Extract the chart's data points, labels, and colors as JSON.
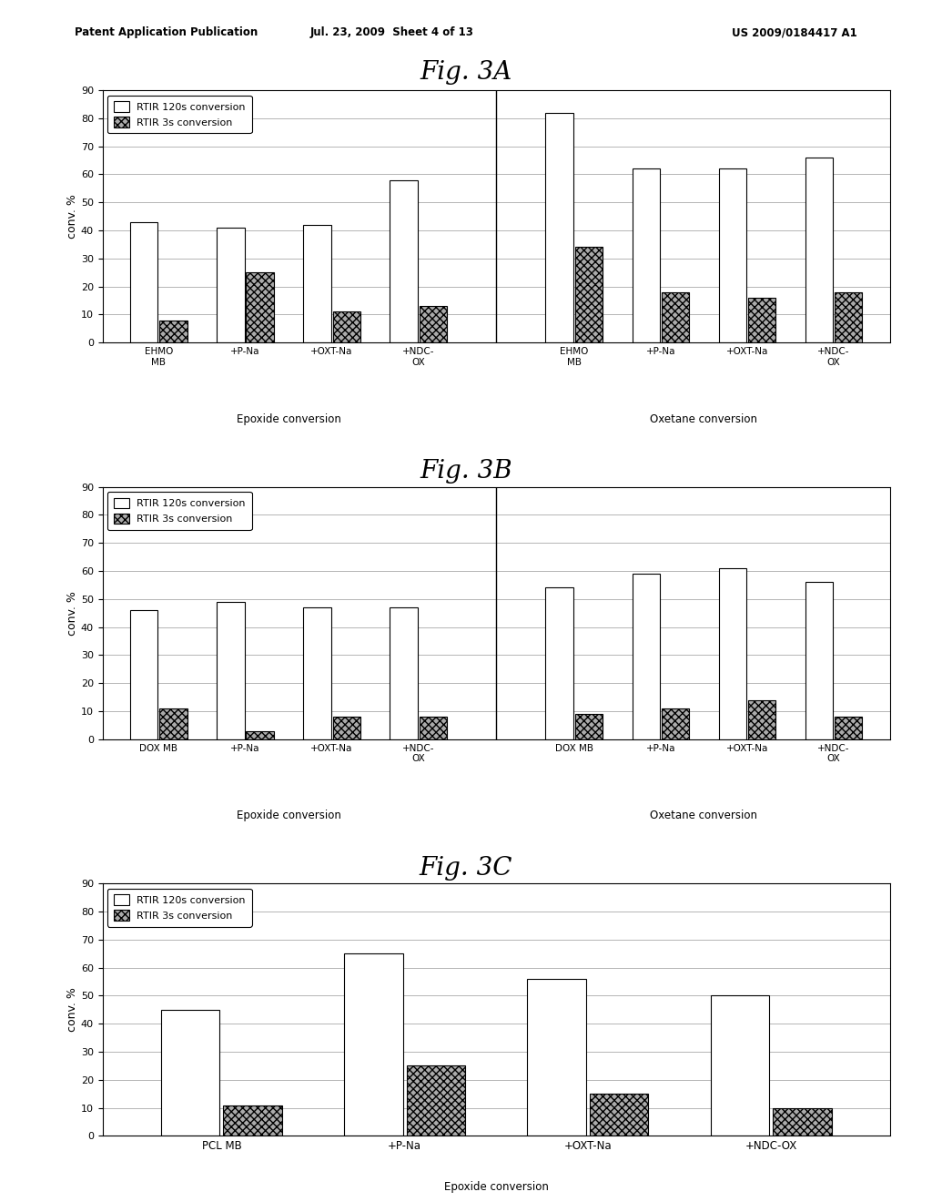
{
  "fig3A": {
    "title": "Fig. 3A",
    "epoxide_labels": [
      "EHMO\nMB",
      "+P-Na",
      "+OXT-Na",
      "+NDC-\nOX"
    ],
    "oxetane_labels": [
      "EHMO\nMB",
      "+P-Na",
      "+OXT-Na",
      "+NDC-\nOX"
    ],
    "epoxide_120s": [
      43,
      41,
      42,
      58
    ],
    "epoxide_3s": [
      8,
      25,
      11,
      13
    ],
    "oxetane_120s": [
      82,
      62,
      62,
      66
    ],
    "oxetane_3s": [
      34,
      18,
      16,
      18
    ],
    "xlabel_epoxide": "Epoxide conversion",
    "xlabel_oxetane": "Oxetane conversion",
    "ylabel": "conv. %",
    "ylim": [
      0,
      90
    ],
    "yticks": [
      0,
      10,
      20,
      30,
      40,
      50,
      60,
      70,
      80,
      90
    ]
  },
  "fig3B": {
    "title": "Fig. 3B",
    "epoxide_labels": [
      "DOX MB",
      "+P-Na",
      "+OXT-Na",
      "+NDC-\nOX"
    ],
    "oxetane_labels": [
      "DOX MB",
      "+P-Na",
      "+OXT-Na",
      "+NDC-\nOX"
    ],
    "epoxide_120s": [
      46,
      49,
      47,
      47
    ],
    "epoxide_3s": [
      11,
      3,
      8,
      8
    ],
    "oxetane_120s": [
      54,
      59,
      61,
      56
    ],
    "oxetane_3s": [
      9,
      11,
      14,
      8
    ],
    "xlabel_epoxide": "Epoxide conversion",
    "xlabel_oxetane": "Oxetane conversion",
    "ylabel": "conv. %",
    "ylim": [
      0,
      90
    ],
    "yticks": [
      0,
      10,
      20,
      30,
      40,
      50,
      60,
      70,
      80,
      90
    ]
  },
  "fig3C": {
    "title": "Fig. 3C",
    "epoxide_labels": [
      "PCL MB",
      "+P-Na",
      "+OXT-Na",
      "+NDC-OX"
    ],
    "epoxide_120s": [
      45,
      65,
      56,
      50
    ],
    "epoxide_3s": [
      11,
      25,
      15,
      10
    ],
    "xlabel_epoxide": "Epoxide conversion",
    "ylabel": "conv. %",
    "ylim": [
      0,
      90
    ],
    "yticks": [
      0,
      10,
      20,
      30,
      40,
      50,
      60,
      70,
      80,
      90
    ]
  },
  "legend_120s": "RTIR 120s conversion",
  "legend_3s": "RTIR 3s conversion",
  "bar_color_120s": "#ffffff",
  "bar_color_3s": "#aaaaaa",
  "bar_edgecolor": "#000000",
  "header_left": "Patent Application Publication",
  "header_mid": "Jul. 23, 2009  Sheet 4 of 13",
  "header_right": "US 2009/0184417 A1",
  "bg_color": "#ffffff"
}
